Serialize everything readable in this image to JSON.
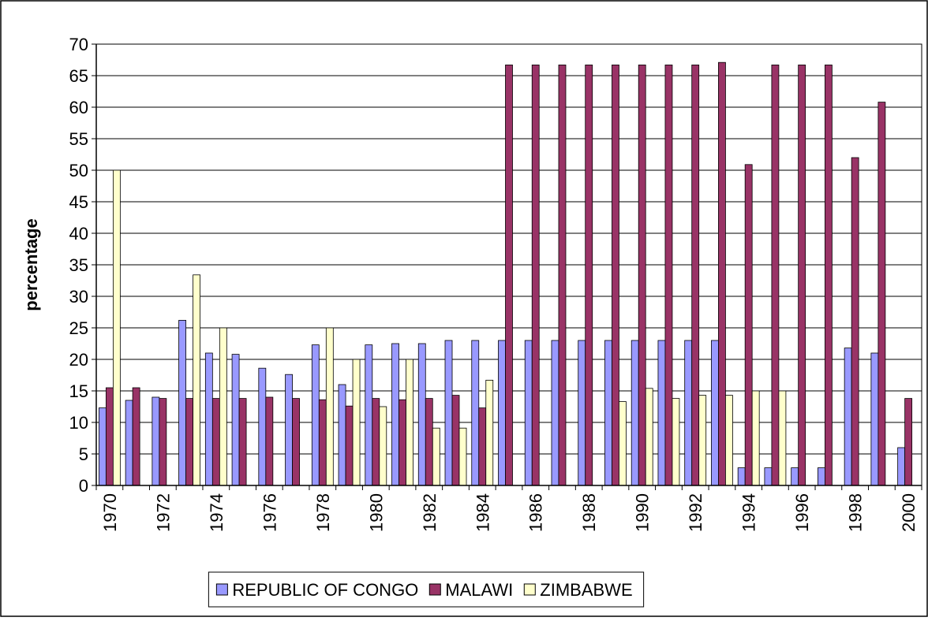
{
  "chart_data": {
    "type": "bar",
    "y_label": "percentage",
    "categories": [
      "1970",
      null,
      "1972",
      null,
      "1974",
      null,
      "1976",
      null,
      "1978",
      null,
      "1980",
      null,
      "1982",
      null,
      "1984",
      null,
      "1986",
      null,
      "1988",
      null,
      "1990",
      null,
      "1992",
      null,
      "1994",
      null,
      "1996",
      null,
      "1998",
      null,
      "2000"
    ],
    "series": [
      {
        "name": "REPUBLIC OF CONGO",
        "color": "#9999ff",
        "values": [
          12.3,
          13.5,
          14,
          26.2,
          21,
          20.8,
          18.6,
          17.6,
          22.3,
          16,
          22.3,
          22.5,
          22.5,
          23,
          23,
          23,
          23,
          23,
          23,
          23,
          23,
          23,
          23,
          23,
          2.8,
          2.8,
          2.8,
          2.8,
          21.8,
          21,
          6
        ]
      },
      {
        "name": "MALAWI",
        "color": "#993366",
        "values": [
          15.5,
          15.5,
          13.8,
          13.8,
          13.8,
          13.8,
          14,
          13.8,
          13.6,
          12.6,
          13.8,
          13.6,
          13.8,
          14.3,
          12.3,
          66.7,
          66.7,
          66.7,
          66.7,
          66.7,
          66.7,
          66.7,
          66.7,
          67.1,
          50.9,
          66.7,
          66.7,
          66.7,
          52,
          60.8,
          13.8
        ]
      },
      {
        "name": "ZIMBABWE",
        "color": "#ffffcc",
        "values": [
          50,
          null,
          null,
          33.4,
          25,
          null,
          null,
          null,
          25,
          20,
          12.5,
          20,
          9.1,
          9.1,
          16.7,
          null,
          null,
          null,
          null,
          13.3,
          15.4,
          13.8,
          14.3,
          14.3,
          15,
          15,
          null,
          null,
          null,
          null,
          null
        ]
      }
    ],
    "ylim": [
      0,
      70
    ],
    "yticks": [
      0,
      5,
      10,
      15,
      20,
      25,
      30,
      35,
      40,
      45,
      50,
      55,
      60,
      65,
      70
    ],
    "grid": true,
    "legend": "bottom"
  }
}
